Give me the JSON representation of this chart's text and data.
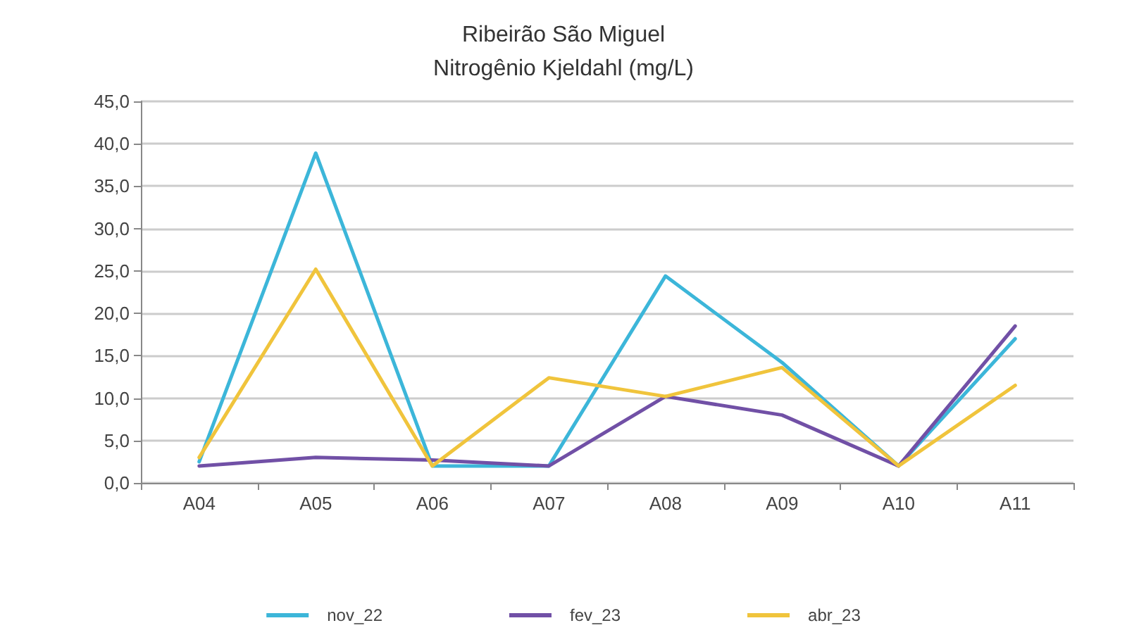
{
  "chart_data": {
    "type": "line",
    "title": "Ribeirão São Miguel\nNitrogênio Kjeldahl (mg/L)",
    "categories": [
      "A04",
      "A05",
      "A06",
      "A07",
      "A08",
      "A09",
      "A10",
      "A11"
    ],
    "series": [
      {
        "name": "nov_22",
        "color": "#3cb6d9",
        "values": [
          2.5,
          38.9,
          2.0,
          2.0,
          24.4,
          14.2,
          2.0,
          17.0
        ]
      },
      {
        "name": "fev_23",
        "color": "#7150a6",
        "values": [
          2.0,
          3.0,
          2.7,
          2.0,
          10.2,
          8.0,
          2.0,
          18.5
        ]
      },
      {
        "name": "abr_23",
        "color": "#f0c43c",
        "values": [
          3.0,
          25.2,
          2.0,
          12.4,
          10.2,
          13.6,
          2.0,
          11.5
        ]
      }
    ],
    "ylim": [
      0,
      45
    ],
    "yticks": [
      {
        "value": 0,
        "label": "0,0"
      },
      {
        "value": 5,
        "label": "5,0"
      },
      {
        "value": 10,
        "label": "10,0"
      },
      {
        "value": 15,
        "label": "15,0"
      },
      {
        "value": 20,
        "label": "20,0"
      },
      {
        "value": 25,
        "label": "25,0"
      },
      {
        "value": 30,
        "label": "30,0"
      },
      {
        "value": 35,
        "label": "35,0"
      },
      {
        "value": 40,
        "label": "40,0"
      },
      {
        "value": 45,
        "label": "45,0"
      }
    ],
    "grid": "y",
    "legend": "bottom",
    "marker": "none",
    "line_style": "solid"
  }
}
